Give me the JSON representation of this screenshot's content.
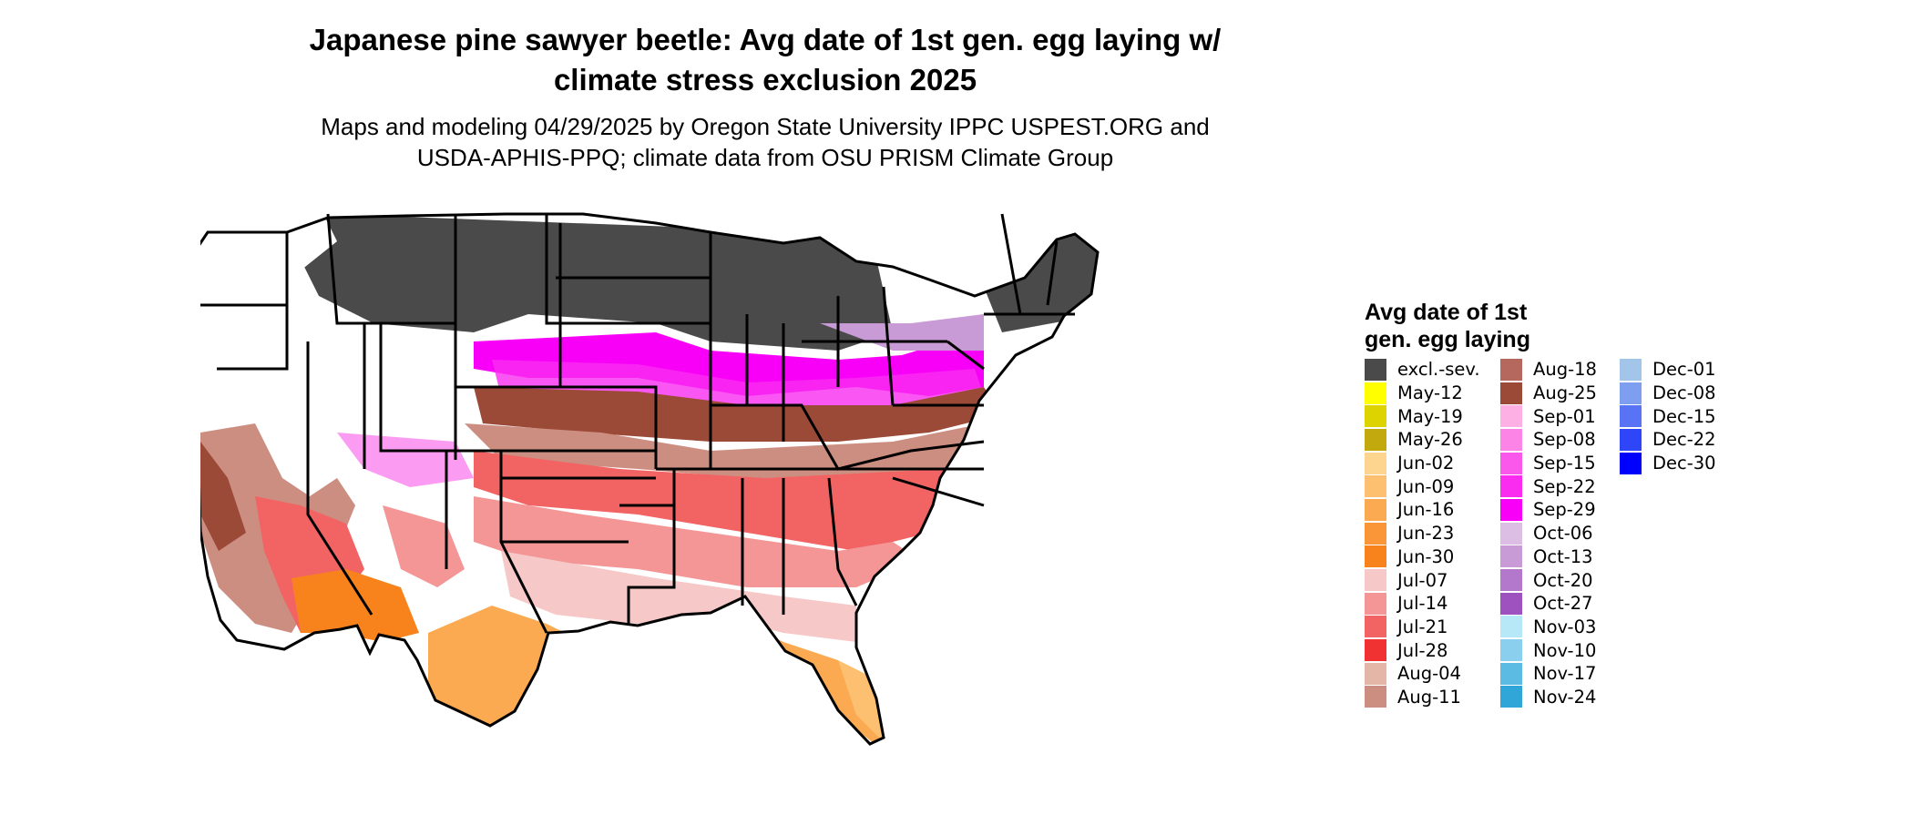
{
  "header": {
    "title_line1": "Japanese pine sawyer beetle: Avg date of 1st gen. egg laying w/",
    "title_line2": "climate stress exclusion 2025",
    "subtitle_line1": "Maps and modeling 04/29/2025 by Oregon State University IPPC USPEST.ORG and",
    "subtitle_line2": "USDA-APHIS-PPQ; climate data from OSU PRISM Climate Group"
  },
  "legend": {
    "title_line1": "Avg date of 1st",
    "title_line2": "gen. egg laying",
    "columns": [
      [
        {
          "label": "excl.-sev.",
          "color": "#4a4a4a"
        },
        {
          "label": "May-12",
          "color": "#ffff00"
        },
        {
          "label": "May-19",
          "color": "#dcd300"
        },
        {
          "label": "May-26",
          "color": "#c2a90d"
        },
        {
          "label": "Jun-02",
          "color": "#fdd58e"
        },
        {
          "label": "Jun-09",
          "color": "#fcc070"
        },
        {
          "label": "Jun-16",
          "color": "#fbaa52"
        },
        {
          "label": "Jun-23",
          "color": "#fa9637"
        },
        {
          "label": "Jun-30",
          "color": "#f8831c"
        },
        {
          "label": "Jul-07",
          "color": "#f6c8c8"
        },
        {
          "label": "Jul-14",
          "color": "#f49696"
        },
        {
          "label": "Jul-21",
          "color": "#f26464"
        },
        {
          "label": "Jul-28",
          "color": "#f03232"
        },
        {
          "label": "Aug-04",
          "color": "#e4b6a8"
        },
        {
          "label": "Aug-11",
          "color": "#cd8e82"
        }
      ],
      [
        {
          "label": "Aug-18",
          "color": "#b5695e"
        },
        {
          "label": "Aug-25",
          "color": "#9b4a37"
        },
        {
          "label": "Sep-01",
          "color": "#fcb0e4"
        },
        {
          "label": "Sep-08",
          "color": "#fb84e6"
        },
        {
          "label": "Sep-15",
          "color": "#fa58ea"
        },
        {
          "label": "Sep-22",
          "color": "#f92cf0"
        },
        {
          "label": "Sep-29",
          "color": "#f800f8"
        },
        {
          "label": "Oct-06",
          "color": "#dcbde4"
        },
        {
          "label": "Oct-13",
          "color": "#c89ad6"
        },
        {
          "label": "Oct-20",
          "color": "#b377cb"
        },
        {
          "label": "Oct-27",
          "color": "#9e52bf"
        },
        {
          "label": "Nov-03",
          "color": "#b6e8f8"
        },
        {
          "label": "Nov-10",
          "color": "#8ad0ee"
        },
        {
          "label": "Nov-17",
          "color": "#5cbbe3"
        },
        {
          "label": "Nov-24",
          "color": "#30a6d8"
        }
      ],
      [
        {
          "label": "Dec-01",
          "color": "#a3c5ea"
        },
        {
          "label": "Dec-08",
          "color": "#7e9ef0"
        },
        {
          "label": "Dec-15",
          "color": "#5873f4"
        },
        {
          "label": "Dec-22",
          "color": "#2e45f8"
        },
        {
          "label": "Dec-30",
          "color": "#0000ff"
        }
      ]
    ]
  }
}
